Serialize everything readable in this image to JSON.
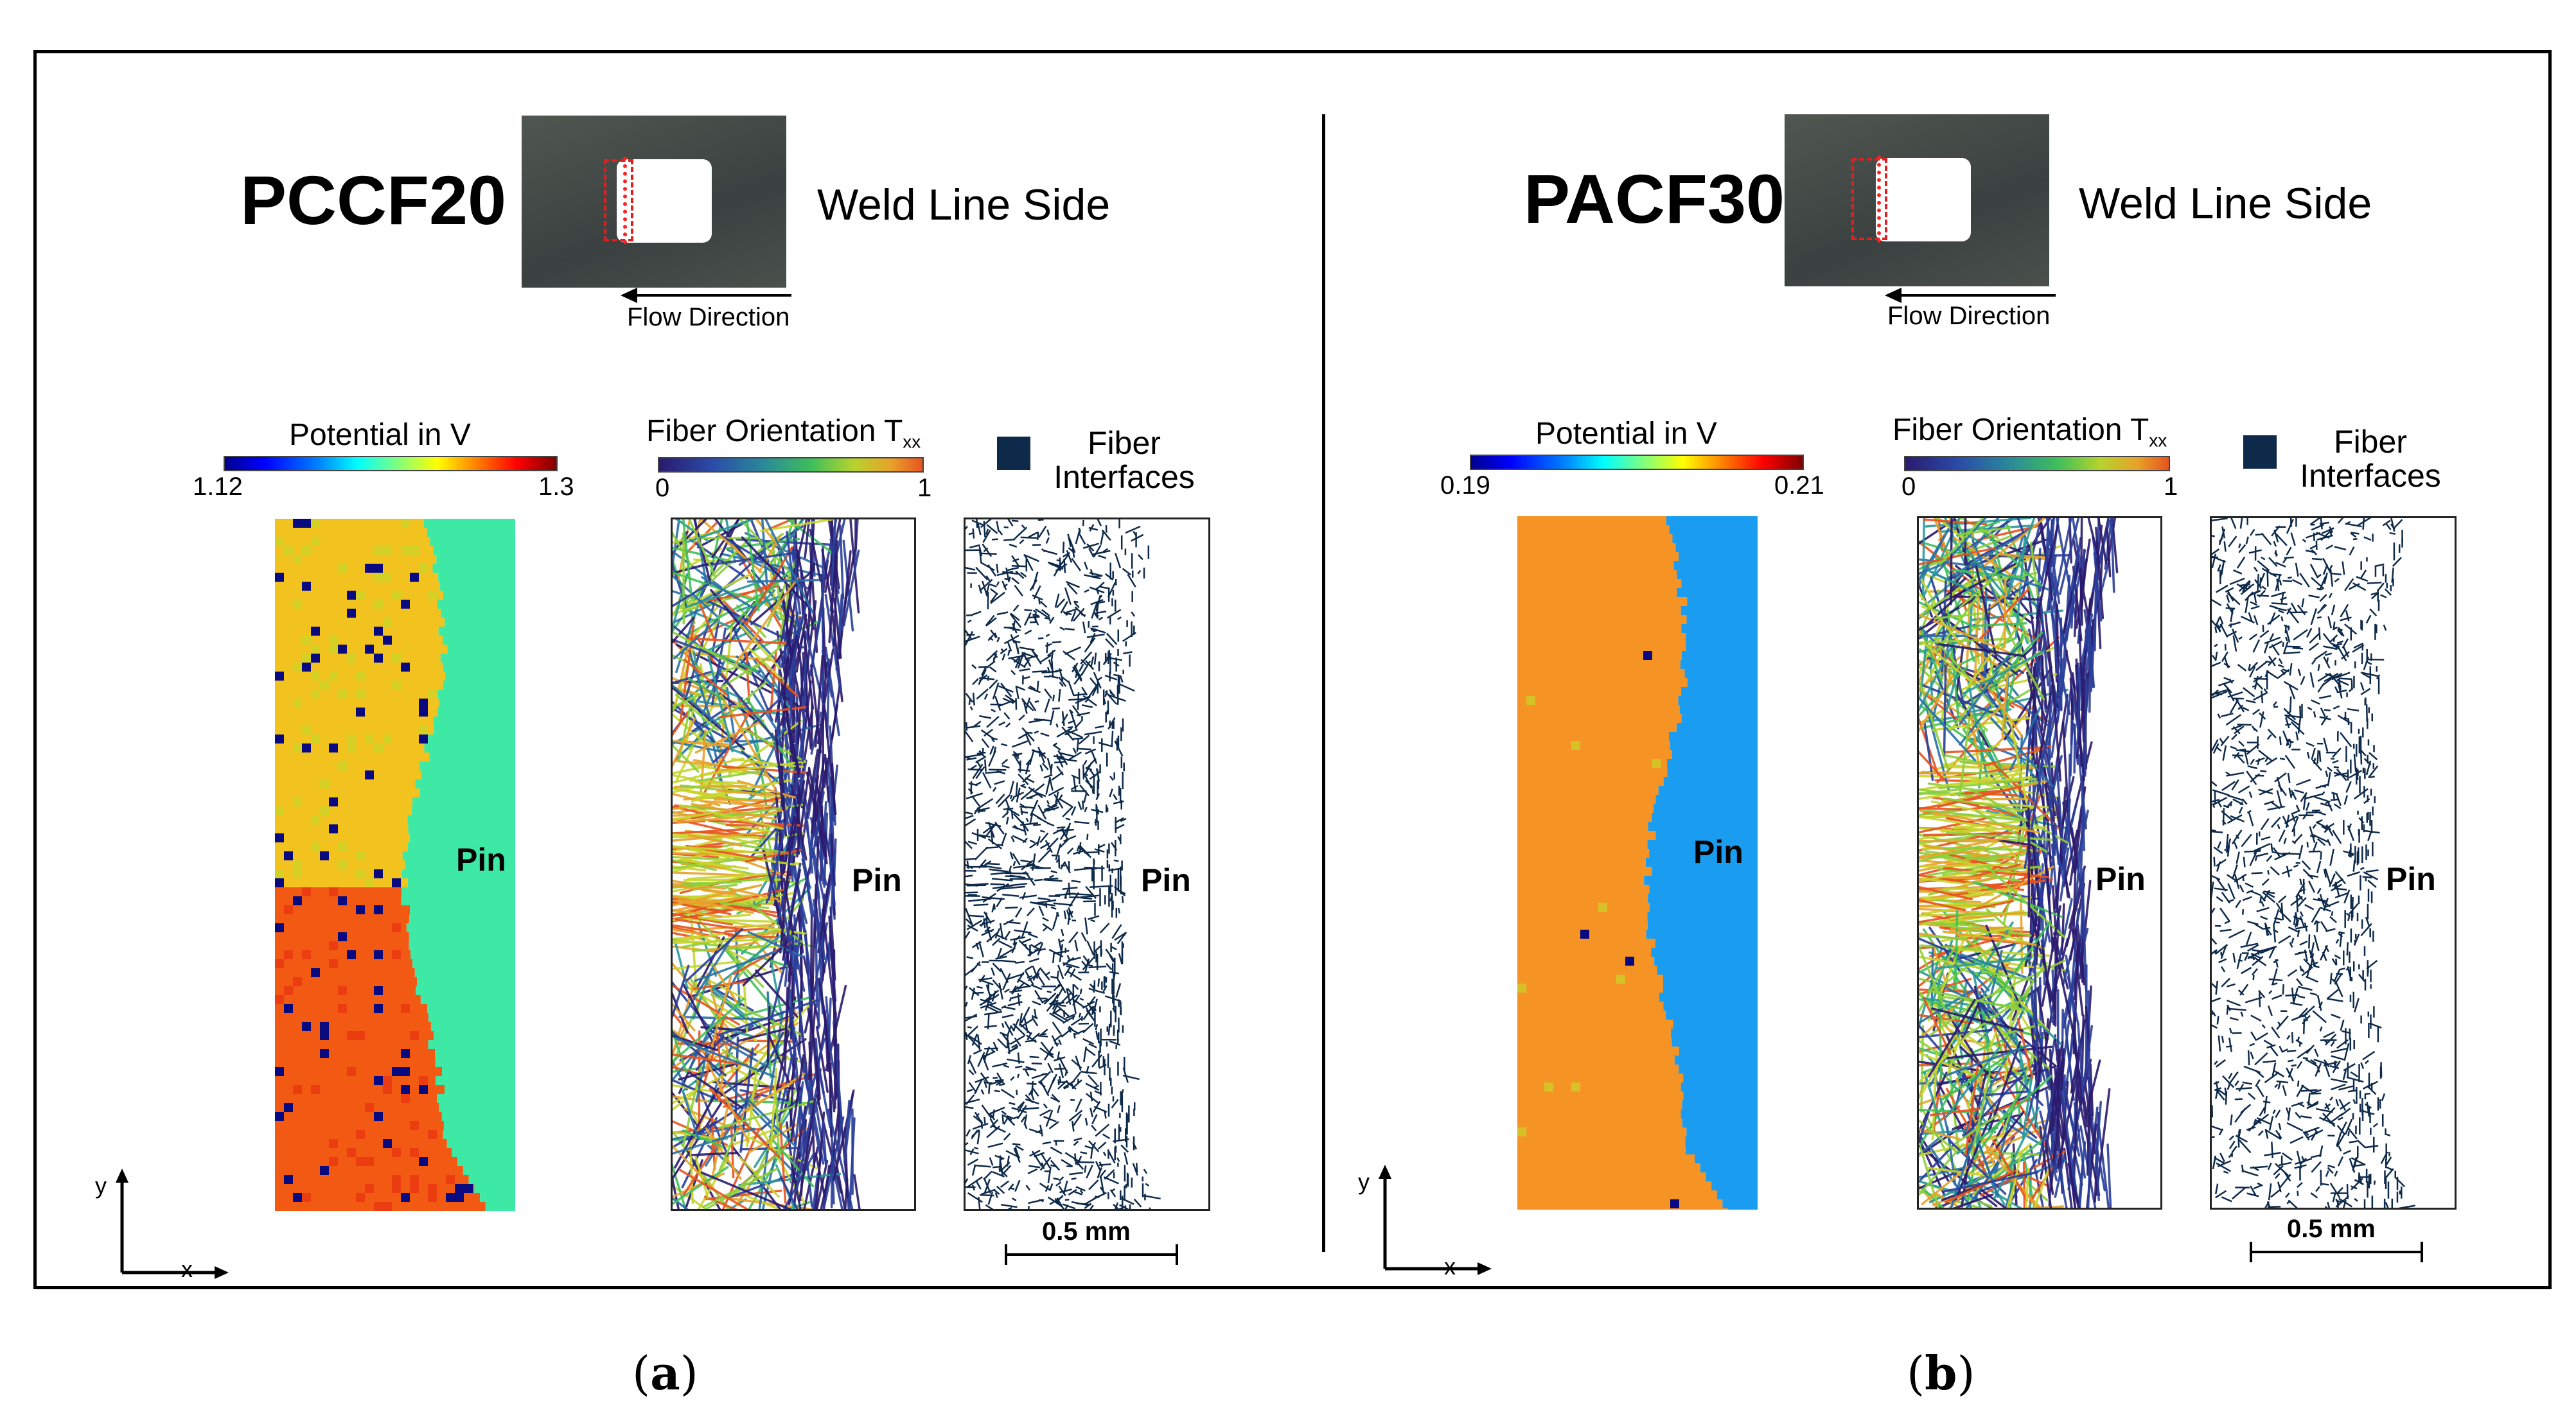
{
  "panels": [
    {
      "id": "a",
      "material": "PCCF20",
      "photo_caption": "Weld Line Side",
      "flow_label": "Flow Direction",
      "potential": {
        "title": "Potential in V",
        "min": "1.12",
        "max": "1.3"
      },
      "fiber_orientation": {
        "title": "Fiber Orientation T",
        "subscript": "xx",
        "min": "0",
        "max": "1"
      },
      "fiber_interfaces": {
        "line1": "Fiber",
        "line2": "Interfaces"
      },
      "pin_label": "Pin",
      "axis_y": "y",
      "axis_x": "x",
      "scale_label": "0.5 mm",
      "sublabel": "a",
      "colors": {
        "upper": "#f2c21e",
        "lower": "#f25a14",
        "pin": "#3ee9a6",
        "defect": "#0a0a80"
      }
    },
    {
      "id": "b",
      "material": "PACF30",
      "photo_caption": "Weld Line Side",
      "flow_label": "Flow Direction",
      "potential": {
        "title": "Potential in V",
        "min": "0.19",
        "max": "0.21"
      },
      "fiber_orientation": {
        "title": "Fiber Orientation T",
        "subscript": "xx",
        "min": "0",
        "max": "1"
      },
      "fiber_interfaces": {
        "line1": "Fiber",
        "line2": "Interfaces"
      },
      "pin_label": "Pin",
      "axis_y": "y",
      "axis_x": "x",
      "scale_label": "0.5 mm",
      "sublabel": "b",
      "colors": {
        "upper": "#f59424",
        "lower": "#f07a18",
        "pin": "#1a9cf0",
        "defect": "#0a0a80"
      }
    }
  ]
}
